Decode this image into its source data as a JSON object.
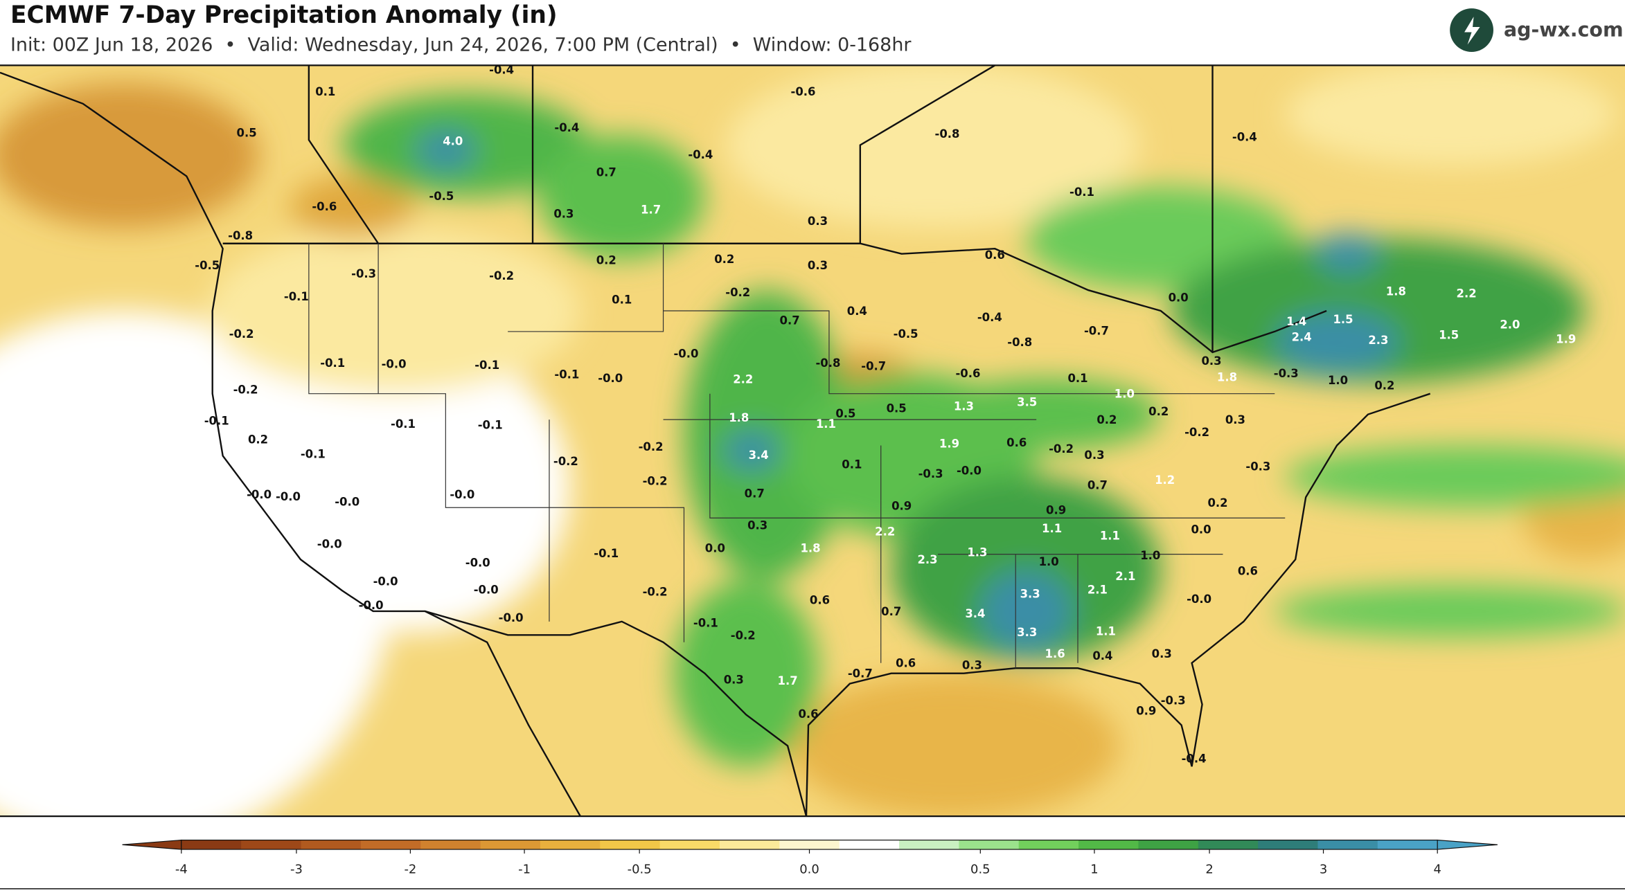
{
  "header": {
    "title": "ECMWF 7-Day Precipitation Anomaly (in)",
    "subtitle": "Init: 00Z Jun 18, 2026  •  Valid: Wednesday, Jun 24, 2026, 7:00 PM (Central)  •  Window: 0-168hr",
    "brand": "ag-wx.com"
  },
  "map": {
    "labels": [
      "-0.4",
      "0.1",
      "-0.6",
      "0.5",
      "4.0",
      "-0.4",
      "-0.8",
      "-0.4",
      "-0.4",
      "0.7",
      "-0.1",
      "-0.5",
      "-0.6",
      "0.3",
      "1.7",
      "0.3",
      "-0.8",
      "0.2",
      "0.2",
      "0.3",
      "-0.5",
      "0.6",
      "-0.3",
      "-0.2",
      "-0.1",
      "0.1",
      "-0.2",
      "0.4",
      "0.0",
      "1.8",
      "2.2",
      "-0.4",
      "1.4",
      "1.5",
      "0.7",
      "-0.2",
      "-0.5",
      "-0.8",
      "-0.7",
      "2.4",
      "2.3",
      "1.5",
      "2.0",
      "1.9",
      "-0.0",
      "-0.1",
      "-0.0",
      "-0.1",
      "-0.8",
      "-0.7",
      "0.3",
      "-0.6",
      "-0.1",
      "-0.0",
      "2.2",
      "0.1",
      "-0.3",
      "1.8",
      "1.0",
      "0.2",
      "-0.2",
      "1.0",
      "1.3",
      "3.5",
      "0.5",
      "0.5",
      "0.2",
      "-0.1",
      "-0.1",
      "1.8",
      "1.1",
      "0.2",
      "0.3",
      "-0.2",
      "-0.1",
      "0.2",
      "1.9",
      "0.6",
      "-0.2",
      "-0.2",
      "0.3",
      "-0.1",
      "3.4",
      "-0.2",
      "0.1",
      "-0.3",
      "-0.0",
      "-0.3",
      "-0.2",
      "1.2",
      "0.7",
      "-0.0",
      "-0.0",
      "0.7",
      "-0.0",
      "-0.0",
      "0.9",
      "0.2",
      "0.9",
      "0.3",
      "2.2",
      "1.1",
      "1.1",
      "0.0",
      "-0.0",
      "0.0",
      "1.8",
      "-0.1",
      "1.3",
      "2.3",
      "1.0",
      "1.0",
      "2.1",
      "0.6",
      "-0.0",
      "-0.0",
      "-0.0",
      "-0.2",
      "3.3",
      "2.1",
      "-0.0",
      "0.6",
      "-0.0",
      "0.7",
      "3.4",
      "-0.0",
      "-0.1",
      "-0.2",
      "3.3",
      "1.1",
      "1.6",
      "0.4",
      "0.3",
      "0.6",
      "0.3",
      "0.3",
      "1.7",
      "-0.7",
      "-0.3",
      "0.6",
      "0.9",
      "-0.4"
    ]
  },
  "colorbar": {
    "ticks": [
      -4,
      -3,
      -2,
      -1,
      -0.5,
      {
        "value": 0,
        "label": "0.0"
      },
      0.5,
      1,
      2,
      3,
      4
    ],
    "colors": [
      "#8a3a14",
      "#9e4818",
      "#b15a1f",
      "#c26c27",
      "#d0822e",
      "#dc9834",
      "#e8b03d",
      "#f2c748",
      "#f8da68",
      "#fbea9a",
      "#fdf6cf",
      "#ffffff",
      "#c9f0c1",
      "#9be28c",
      "#72d05c",
      "#52b947",
      "#3ea244",
      "#318a58",
      "#2e7d79",
      "#3a8ea6",
      "#4aa2c6"
    ]
  }
}
